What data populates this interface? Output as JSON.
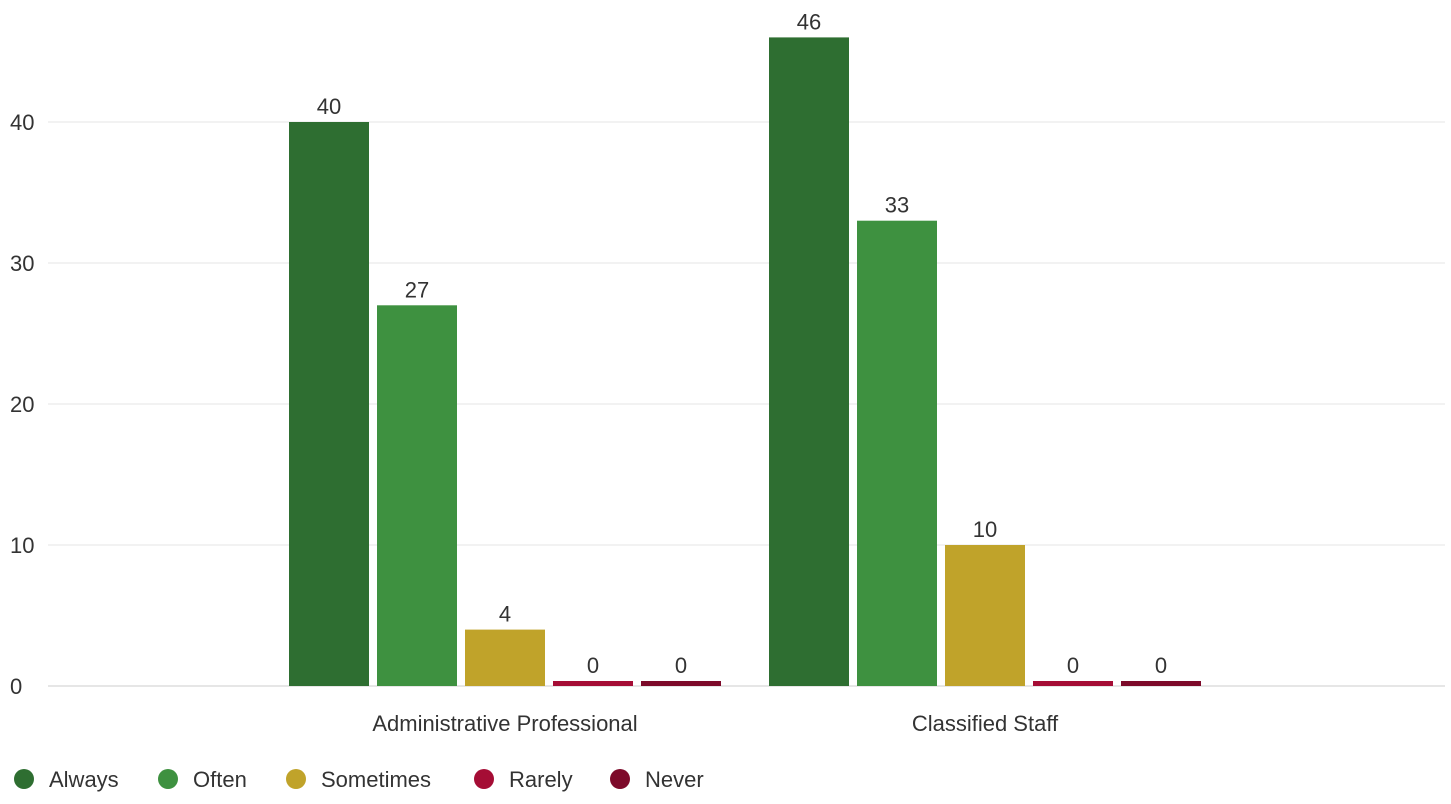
{
  "chart_data": {
    "type": "bar",
    "categories": [
      "Administrative Professional",
      "Classified Staff"
    ],
    "series": [
      {
        "name": "Always",
        "color": "#2e6e31",
        "values": [
          40,
          46
        ]
      },
      {
        "name": "Often",
        "color": "#3e9140",
        "values": [
          27,
          33
        ]
      },
      {
        "name": "Sometimes",
        "color": "#c0a32a",
        "values": [
          4,
          10
        ]
      },
      {
        "name": "Rarely",
        "color": "#a50d35",
        "values": [
          0,
          0
        ]
      },
      {
        "name": "Never",
        "color": "#7d0a2a",
        "values": [
          0,
          0
        ]
      }
    ],
    "yticks": [
      0,
      10,
      20,
      30,
      40
    ],
    "ylim": [
      0,
      46
    ],
    "grid": true,
    "legend": "bottom-left",
    "data_labels": true
  }
}
